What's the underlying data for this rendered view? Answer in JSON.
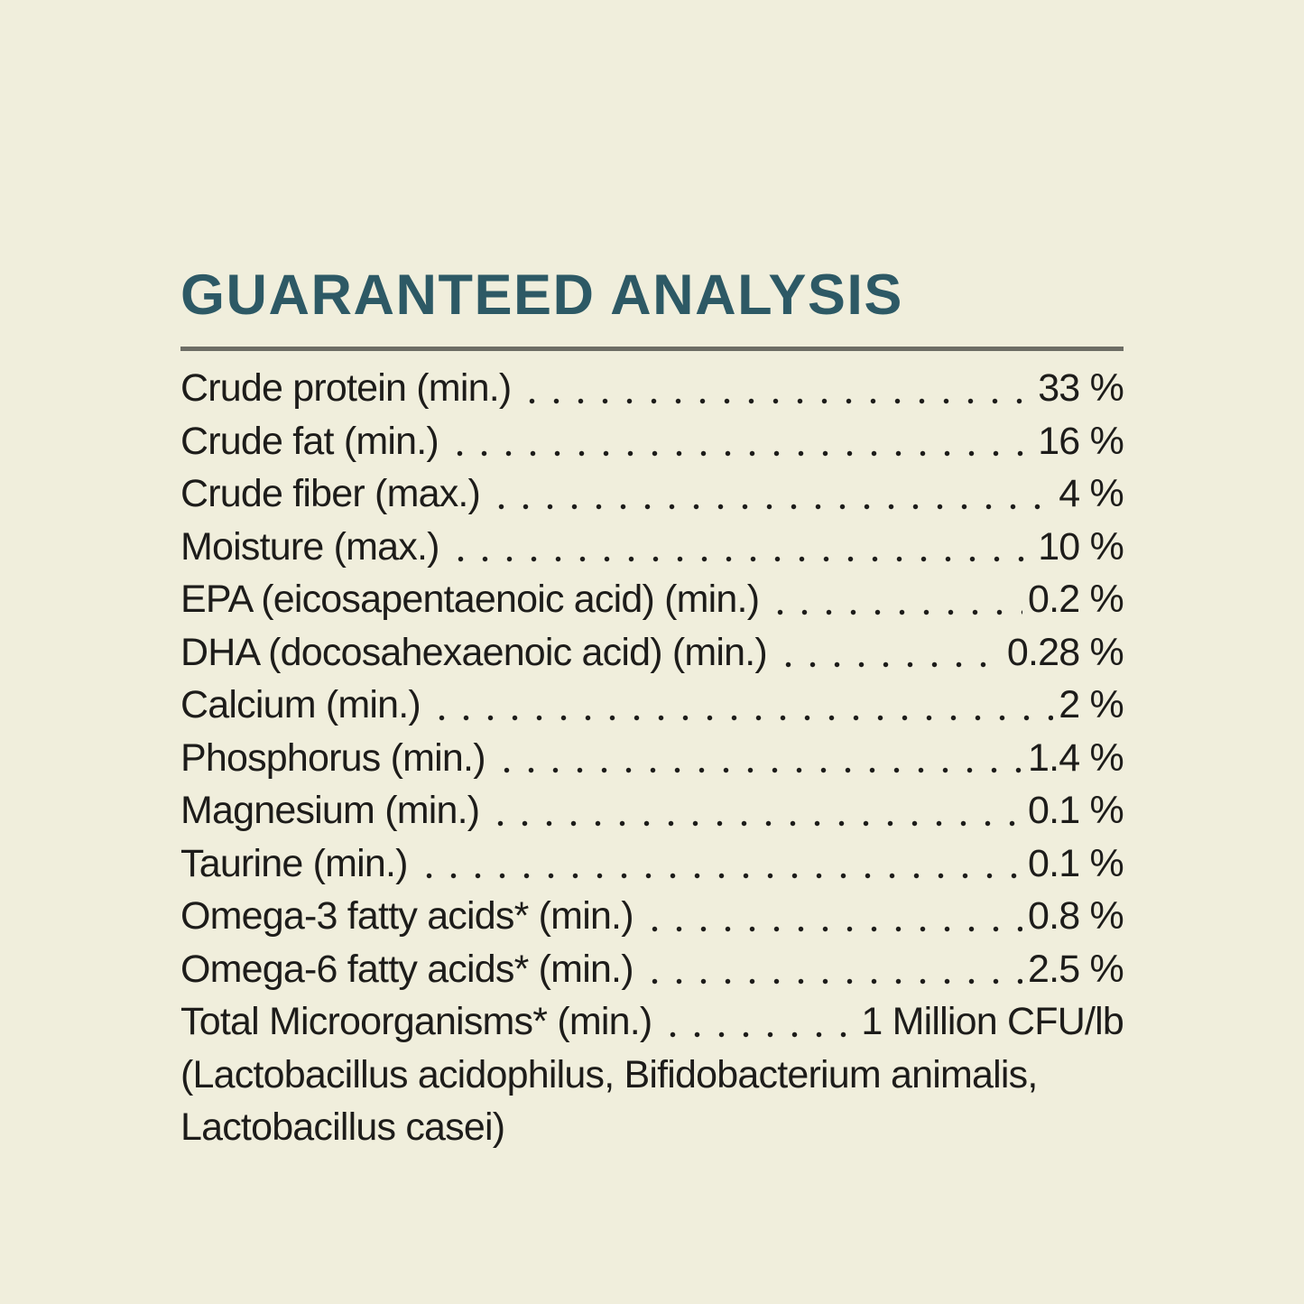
{
  "theme": {
    "bg": "#f0eedc",
    "text": "#1d1c1a",
    "heading": "#2d5965",
    "rule": "#6d6d65"
  },
  "header": {
    "title": "GUARANTEED ANALYSIS"
  },
  "analysis": {
    "rows": [
      {
        "label": "Crude protein (min.)",
        "value": "33 %"
      },
      {
        "label": "Crude fat (min.)",
        "value": "16 %"
      },
      {
        "label": "Crude fiber (max.)",
        "value": "4 %"
      },
      {
        "label": "Moisture (max.)",
        "value": "10 %"
      },
      {
        "label": "EPA (eicosapentaenoic acid) (min.)",
        "value": "0.2 %"
      },
      {
        "label": "DHA (docosahexaenoic acid) (min.)",
        "value": "0.28 %"
      },
      {
        "label": "Calcium (min.)",
        "value": "2 %"
      },
      {
        "label": "Phosphorus (min.)",
        "value": "1.4 %"
      },
      {
        "label": "Magnesium (min.)",
        "value": "0.1 %"
      },
      {
        "label": "Taurine (min.)",
        "value": "0.1 %"
      },
      {
        "label": "Omega-3 fatty acids* (min.)",
        "value": "0.8 %"
      },
      {
        "label": "Omega-6 fatty acids* (min.)",
        "value": "2.5 %"
      },
      {
        "label": "Total Microorganisms* (min.)",
        "value": "1 Million CFU/lb"
      }
    ],
    "footnote_lines": [
      "(Lactobacillus acidophilus, Bifidobacterium animalis,",
      "Lactobacillus casei)"
    ]
  }
}
